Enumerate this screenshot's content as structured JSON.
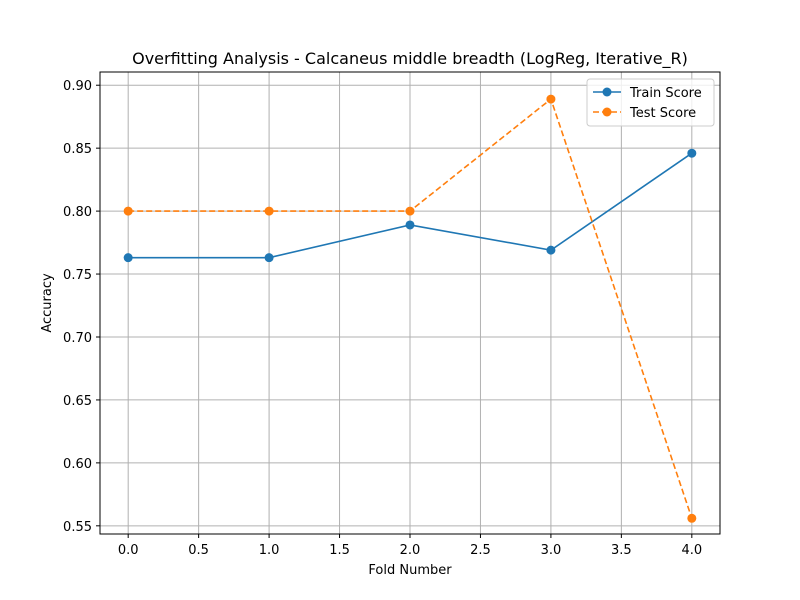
{
  "chart_data": {
    "type": "line",
    "title": "Overfitting Analysis - Calcaneus middle breadth (LogReg, Iterative_R)",
    "xlabel": "Fold Number",
    "ylabel": "Accuracy",
    "x": [
      0,
      1,
      2,
      3,
      4
    ],
    "xlim": [
      -0.2,
      4.2
    ],
    "ylim": [
      0.5435,
      0.9105
    ],
    "xticks": [
      0.0,
      0.5,
      1.0,
      1.5,
      2.0,
      2.5,
      3.0,
      3.5,
      4.0
    ],
    "xtick_labels": [
      "0.0",
      "0.5",
      "1.0",
      "1.5",
      "2.0",
      "2.5",
      "3.0",
      "3.5",
      "4.0"
    ],
    "yticks": [
      0.55,
      0.6,
      0.65,
      0.7,
      0.75,
      0.8,
      0.85,
      0.9
    ],
    "ytick_labels": [
      "0.55",
      "0.60",
      "0.65",
      "0.70",
      "0.75",
      "0.80",
      "0.85",
      "0.90"
    ],
    "grid": true,
    "legend_position": "top-right",
    "series": [
      {
        "name": "Train Score",
        "values": [
          0.763,
          0.763,
          0.789,
          0.769,
          0.846
        ],
        "color": "#1f77b4",
        "line_style": "solid",
        "marker": "circle"
      },
      {
        "name": "Test Score",
        "values": [
          0.8,
          0.8,
          0.8,
          0.889,
          0.556
        ],
        "color": "#ff7f0e",
        "line_style": "dashed",
        "marker": "circle"
      }
    ]
  }
}
